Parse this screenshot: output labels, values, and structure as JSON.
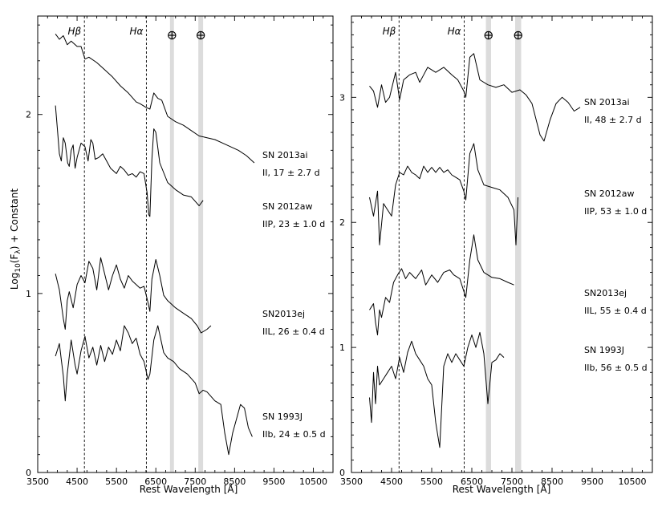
{
  "figure": {
    "y_label": "Log10(Fλ) + Constant",
    "x_label": "Rest Wavelength [Å]"
  },
  "chart_data": [
    {
      "type": "line",
      "panel": "left",
      "xlabel": "Rest Wavelength [Å]",
      "ylabel": "Log10(Fλ) + Constant",
      "xlim": [
        3500,
        11000
      ],
      "ylim": [
        0,
        2.55
      ],
      "xticks": [
        3500,
        4500,
        5500,
        6500,
        7500,
        8500,
        9500,
        10500
      ],
      "yticks": [
        0,
        1,
        2
      ],
      "grid": false,
      "reference_lines": [
        {
          "label": "Hβ",
          "x": 4686
        },
        {
          "label": "Hα",
          "x": 6260
        }
      ],
      "telluric_bands": [
        {
          "label": "⊕",
          "x_range": [
            6860,
            6960
          ]
        },
        {
          "label": "⊕",
          "x_range": [
            7580,
            7700
          ]
        }
      ],
      "series": [
        {
          "name": "SN 2013ai",
          "sub": "II, 17 ± 2.7 d",
          "x": [
            3950,
            4050,
            4150,
            4250,
            4350,
            4500,
            4600,
            4700,
            4800,
            5000,
            5200,
            5400,
            5600,
            5800,
            6000,
            6100,
            6250,
            6350,
            6450,
            6550,
            6650,
            6800,
            7000,
            7200,
            7400,
            7600,
            7800,
            8000,
            8200,
            8400,
            8600,
            8800,
            9000
          ],
          "y": [
            2.45,
            2.42,
            2.44,
            2.39,
            2.41,
            2.38,
            2.38,
            2.31,
            2.32,
            2.29,
            2.25,
            2.21,
            2.16,
            2.12,
            2.07,
            2.06,
            2.04,
            2.03,
            2.12,
            2.09,
            2.08,
            1.99,
            1.96,
            1.94,
            1.91,
            1.88,
            1.87,
            1.86,
            1.84,
            1.82,
            1.8,
            1.77,
            1.73
          ]
        },
        {
          "name": "SN 2012aw",
          "sub": "IIP, 23 ± 1.0 d",
          "x": [
            3950,
            4000,
            4050,
            4100,
            4150,
            4200,
            4260,
            4300,
            4350,
            4400,
            4450,
            4500,
            4600,
            4700,
            4780,
            4850,
            4900,
            4960,
            5050,
            5150,
            5250,
            5350,
            5500,
            5600,
            5700,
            5800,
            5900,
            6000,
            6100,
            6200,
            6280,
            6320,
            6350,
            6400,
            6450,
            6500,
            6600,
            6800,
            7000,
            7200,
            7400,
            7600,
            7700
          ],
          "y": [
            2.05,
            1.92,
            1.78,
            1.74,
            1.87,
            1.84,
            1.73,
            1.71,
            1.8,
            1.83,
            1.7,
            1.76,
            1.84,
            1.82,
            1.74,
            1.86,
            1.84,
            1.75,
            1.76,
            1.78,
            1.74,
            1.7,
            1.67,
            1.71,
            1.69,
            1.66,
            1.67,
            1.65,
            1.68,
            1.67,
            1.56,
            1.44,
            1.43,
            1.75,
            1.92,
            1.9,
            1.73,
            1.62,
            1.58,
            1.55,
            1.54,
            1.49,
            1.52
          ]
        },
        {
          "name": "SN2013ej",
          "sub": "IIL, 26 ± 0.4 d",
          "x": [
            3950,
            4050,
            4150,
            4200,
            4250,
            4300,
            4400,
            4500,
            4600,
            4700,
            4800,
            4900,
            5000,
            5100,
            5200,
            5300,
            5400,
            5500,
            5600,
            5700,
            5800,
            5900,
            6000,
            6100,
            6200,
            6300,
            6350,
            6400,
            6500,
            6600,
            6700,
            6800,
            7000,
            7200,
            7400,
            7550,
            7650,
            7800,
            7900
          ],
          "y": [
            1.11,
            1.02,
            0.86,
            0.8,
            0.96,
            1.01,
            0.92,
            1.05,
            1.1,
            1.06,
            1.18,
            1.14,
            1.02,
            1.2,
            1.11,
            1.02,
            1.1,
            1.16,
            1.08,
            1.03,
            1.1,
            1.07,
            1.05,
            1.03,
            1.04,
            0.95,
            0.9,
            1.08,
            1.19,
            1.1,
            0.99,
            0.96,
            0.92,
            0.89,
            0.86,
            0.82,
            0.78,
            0.8,
            0.82
          ]
        },
        {
          "name": "SN 1993J",
          "sub": "IIb, 24 ± 0.5 d",
          "x": [
            3950,
            4050,
            4100,
            4150,
            4200,
            4250,
            4350,
            4450,
            4500,
            4600,
            4700,
            4800,
            4900,
            5000,
            5100,
            5200,
            5300,
            5400,
            5500,
            5600,
            5700,
            5800,
            5900,
            6000,
            6100,
            6200,
            6300,
            6350,
            6450,
            6550,
            6700,
            6800,
            6950,
            7100,
            7300,
            7500,
            7600,
            7700,
            7800,
            8000,
            8150,
            8250,
            8350,
            8450,
            8550,
            8650,
            8750,
            8850,
            8950
          ],
          "y": [
            0.65,
            0.72,
            0.63,
            0.54,
            0.4,
            0.55,
            0.74,
            0.6,
            0.55,
            0.68,
            0.76,
            0.64,
            0.7,
            0.6,
            0.71,
            0.62,
            0.7,
            0.66,
            0.74,
            0.68,
            0.82,
            0.78,
            0.72,
            0.75,
            0.66,
            0.62,
            0.52,
            0.55,
            0.74,
            0.82,
            0.67,
            0.64,
            0.62,
            0.58,
            0.55,
            0.5,
            0.44,
            0.46,
            0.45,
            0.4,
            0.38,
            0.22,
            0.1,
            0.22,
            0.3,
            0.38,
            0.36,
            0.25,
            0.2
          ]
        }
      ]
    },
    {
      "type": "line",
      "panel": "right",
      "xlabel": "Rest Wavelength [Å]",
      "ylabel": "",
      "xlim": [
        3500,
        11000
      ],
      "ylim": [
        0,
        3.65
      ],
      "xticks": [
        3500,
        4500,
        5500,
        6500,
        7500,
        8500,
        9500,
        10500
      ],
      "yticks": [
        0,
        1,
        2,
        3
      ],
      "grid": false,
      "reference_lines": [
        {
          "label": "Hβ",
          "x": 4686
        },
        {
          "label": "Hα",
          "x": 6310
        }
      ],
      "telluric_bands": [
        {
          "label": "⊕",
          "x_range": [
            6850,
            6980
          ]
        },
        {
          "label": "⊕",
          "x_range": [
            7580,
            7730
          ]
        }
      ],
      "series": [
        {
          "name": "SN 2013ai",
          "sub": "II, 48 ± 2.7 d",
          "x": [
            3950,
            4050,
            4150,
            4250,
            4350,
            4450,
            4600,
            4700,
            4800,
            4950,
            5100,
            5200,
            5300,
            5400,
            5600,
            5800,
            6000,
            6150,
            6300,
            6350,
            6450,
            6550,
            6700,
            6900,
            7100,
            7300,
            7500,
            7700,
            7850,
            8000,
            8200,
            8300,
            8450,
            8600,
            8750,
            8900,
            9050,
            9200
          ],
          "y": [
            3.09,
            3.05,
            2.92,
            3.1,
            2.96,
            3.0,
            3.2,
            2.98,
            3.14,
            3.18,
            3.2,
            3.12,
            3.18,
            3.24,
            3.2,
            3.24,
            3.18,
            3.14,
            3.05,
            3.0,
            3.32,
            3.35,
            3.14,
            3.1,
            3.08,
            3.1,
            3.04,
            3.06,
            3.02,
            2.95,
            2.7,
            2.65,
            2.82,
            2.95,
            3.0,
            2.96,
            2.89,
            2.92
          ]
        },
        {
          "name": "SN 2012aw",
          "sub": "IIP, 53 ± 1.0 d",
          "x": [
            3950,
            4050,
            4150,
            4200,
            4300,
            4400,
            4500,
            4600,
            4700,
            4800,
            4900,
            5000,
            5100,
            5200,
            5300,
            5400,
            5500,
            5600,
            5700,
            5800,
            5900,
            6000,
            6100,
            6200,
            6300,
            6350,
            6450,
            6550,
            6650,
            6800,
            7000,
            7200,
            7400,
            7550,
            7600,
            7650
          ],
          "y": [
            2.2,
            2.05,
            2.25,
            1.82,
            2.15,
            2.1,
            2.05,
            2.3,
            2.4,
            2.38,
            2.45,
            2.4,
            2.38,
            2.35,
            2.45,
            2.4,
            2.44,
            2.4,
            2.44,
            2.4,
            2.42,
            2.38,
            2.36,
            2.34,
            2.25,
            2.18,
            2.55,
            2.63,
            2.42,
            2.3,
            2.28,
            2.26,
            2.2,
            2.1,
            1.82,
            2.2
          ]
        },
        {
          "name": "SN2013ej",
          "sub": "IIL, 55 ± 0.4 d",
          "x": [
            3950,
            4050,
            4100,
            4150,
            4200,
            4250,
            4350,
            4450,
            4550,
            4650,
            4750,
            4850,
            4950,
            5100,
            5250,
            5350,
            5500,
            5650,
            5800,
            5950,
            6050,
            6200,
            6300,
            6350,
            6450,
            6550,
            6650,
            6800,
            7000,
            7200,
            7400,
            7550
          ],
          "y": [
            1.3,
            1.35,
            1.2,
            1.1,
            1.3,
            1.24,
            1.4,
            1.36,
            1.52,
            1.58,
            1.63,
            1.55,
            1.6,
            1.55,
            1.62,
            1.5,
            1.58,
            1.52,
            1.6,
            1.62,
            1.58,
            1.55,
            1.45,
            1.4,
            1.7,
            1.9,
            1.7,
            1.6,
            1.56,
            1.55,
            1.52,
            1.5
          ]
        },
        {
          "name": "SN 1993J",
          "sub": "IIb, 56 ± 0.5 d",
          "x": [
            3950,
            4000,
            4050,
            4100,
            4150,
            4200,
            4300,
            4400,
            4500,
            4600,
            4700,
            4800,
            4900,
            5000,
            5100,
            5200,
            5300,
            5400,
            5500,
            5600,
            5700,
            5800,
            5900,
            6000,
            6100,
            6200,
            6300,
            6400,
            6500,
            6600,
            6700,
            6800,
            6900,
            7000,
            7100,
            7200,
            7300
          ],
          "y": [
            0.6,
            0.4,
            0.8,
            0.55,
            0.85,
            0.7,
            0.75,
            0.8,
            0.85,
            0.75,
            0.92,
            0.8,
            0.96,
            1.05,
            0.95,
            0.9,
            0.85,
            0.75,
            0.7,
            0.4,
            0.2,
            0.85,
            0.95,
            0.88,
            0.95,
            0.9,
            0.85,
            1.0,
            1.1,
            1.0,
            1.12,
            0.95,
            0.55,
            0.88,
            0.9,
            0.95,
            0.92
          ]
        }
      ]
    }
  ]
}
